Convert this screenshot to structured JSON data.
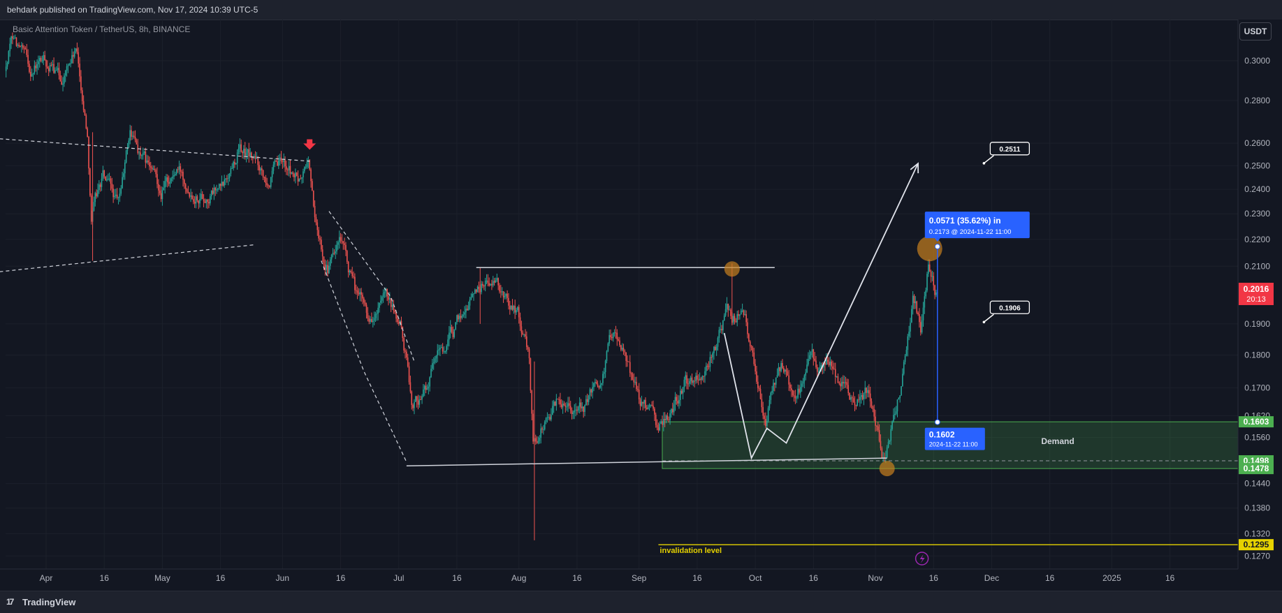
{
  "header": {
    "publisher_line": "behdark published on TradingView.com, Nov 17, 2024 10:39 UTC-5"
  },
  "symbol": {
    "description": "Basic Attention Token / TetherUS, 8h, BINANCE"
  },
  "currency_button": "USDT",
  "footer": {
    "logo_text": "TradingView",
    "logo_icon": "tradingview-logo-icon"
  },
  "colors": {
    "background": "#131722",
    "up": "#26a69a",
    "down": "#ef5350",
    "demand_zone": "#4caf50",
    "invalidation": "#e6d200",
    "measure": "#2962ff",
    "circle": "#c8801e"
  },
  "chart_data": {
    "type": "candlestick",
    "title": "",
    "interval": "8h",
    "exchange": "BINANCE",
    "y_scale": "log",
    "ylim": [
      0.126,
      0.325
    ],
    "y_ticks": [
      "0.3000",
      "0.2800",
      "0.2600",
      "0.2500",
      "0.2400",
      "0.2300",
      "0.2200",
      "0.2100",
      "0.1900",
      "0.1800",
      "0.1700",
      "0.1620",
      "0.1560",
      "0.1440",
      "0.1380",
      "0.1320",
      "0.1270"
    ],
    "x_ticks": [
      "Apr",
      "16",
      "May",
      "16",
      "Jun",
      "16",
      "Jul",
      "16",
      "Aug",
      "16",
      "Sep",
      "16",
      "Oct",
      "16",
      "Nov",
      "16",
      "Dec",
      "16",
      "2025",
      "16"
    ],
    "last_price": {
      "value": "0.2016",
      "countdown": "20:13"
    },
    "price_tags": [
      {
        "label": "0.1603",
        "value": 0.1603,
        "color": "#4caf50"
      },
      {
        "label": "0.1498",
        "value": 0.1498,
        "color": "#4caf50"
      },
      {
        "label": "0.1478",
        "value": 0.1478,
        "color": "#4caf50"
      },
      {
        "label": "0.1295",
        "value": 0.1295,
        "color": "#e6d200"
      }
    ],
    "price_path": [
      [
        "2024-03-20",
        0.285
      ],
      [
        "2024-03-24",
        0.315
      ],
      [
        "2024-03-28",
        0.295
      ],
      [
        "2024-04-01",
        0.3
      ],
      [
        "2024-04-05",
        0.29
      ],
      [
        "2024-04-09",
        0.305
      ],
      [
        "2024-04-12",
        0.265
      ],
      [
        "2024-04-13",
        0.23
      ],
      [
        "2024-04-16",
        0.245
      ],
      [
        "2024-04-20",
        0.232
      ],
      [
        "2024-04-23",
        0.265
      ],
      [
        "2024-04-27",
        0.25
      ],
      [
        "2024-05-01",
        0.24
      ],
      [
        "2024-05-05",
        0.248
      ],
      [
        "2024-05-09",
        0.242
      ],
      [
        "2024-05-13",
        0.238
      ],
      [
        "2024-05-17",
        0.24
      ],
      [
        "2024-05-21",
        0.258
      ],
      [
        "2024-05-25",
        0.252
      ],
      [
        "2024-05-29",
        0.246
      ],
      [
        "2024-06-02",
        0.25
      ],
      [
        "2024-06-06",
        0.242
      ],
      [
        "2024-06-08",
        0.252
      ],
      [
        "2024-06-10",
        0.225
      ],
      [
        "2024-06-13",
        0.21
      ],
      [
        "2024-06-16",
        0.218
      ],
      [
        "2024-06-20",
        0.2
      ],
      [
        "2024-06-24",
        0.192
      ],
      [
        "2024-06-28",
        0.196
      ],
      [
        "2024-07-02",
        0.188
      ],
      [
        "2024-07-05",
        0.165
      ],
      [
        "2024-07-08",
        0.17
      ],
      [
        "2024-07-12",
        0.18
      ],
      [
        "2024-07-16",
        0.188
      ],
      [
        "2024-07-20",
        0.2
      ],
      [
        "2024-07-24",
        0.206
      ],
      [
        "2024-07-28",
        0.2
      ],
      [
        "2024-08-01",
        0.195
      ],
      [
        "2024-08-04",
        0.178
      ],
      [
        "2024-08-05",
        0.155
      ],
      [
        "2024-08-07",
        0.158
      ],
      [
        "2024-08-10",
        0.165
      ],
      [
        "2024-08-14",
        0.168
      ],
      [
        "2024-08-18",
        0.163
      ],
      [
        "2024-08-22",
        0.172
      ],
      [
        "2024-08-26",
        0.19
      ],
      [
        "2024-08-29",
        0.178
      ],
      [
        "2024-09-02",
        0.166
      ],
      [
        "2024-09-06",
        0.158
      ],
      [
        "2024-09-09",
        0.162
      ],
      [
        "2024-09-13",
        0.17
      ],
      [
        "2024-09-17",
        0.172
      ],
      [
        "2024-09-21",
        0.182
      ],
      [
        "2024-09-24",
        0.195
      ],
      [
        "2024-09-26",
        0.192
      ],
      [
        "2024-09-28",
        0.196
      ],
      [
        "2024-10-01",
        0.178
      ],
      [
        "2024-10-04",
        0.163
      ],
      [
        "2024-10-08",
        0.175
      ],
      [
        "2024-10-12",
        0.168
      ],
      [
        "2024-10-16",
        0.178
      ],
      [
        "2024-10-20",
        0.176
      ],
      [
        "2024-10-24",
        0.172
      ],
      [
        "2024-10-27",
        0.166
      ],
      [
        "2024-10-30",
        0.17
      ],
      [
        "2024-11-02",
        0.158
      ],
      [
        "2024-11-04",
        0.15
      ],
      [
        "2024-11-06",
        0.162
      ],
      [
        "2024-11-09",
        0.178
      ],
      [
        "2024-11-11",
        0.2
      ],
      [
        "2024-11-13",
        0.19
      ],
      [
        "2024-11-15",
        0.212
      ],
      [
        "2024-11-17",
        0.2016
      ]
    ],
    "annotations": {
      "demand_zone": {
        "label": "Demand",
        "from": "2024-09-07",
        "upper": 0.1603,
        "lower": 0.1478,
        "mid": 0.1498
      },
      "invalidation": {
        "label": "invalidation level",
        "value": 0.1295,
        "from": "2024-09-06"
      },
      "resistance_line": {
        "from": "2024-07-21",
        "to": "2024-10-06",
        "value": 0.2095
      },
      "support_line": {
        "from": "2024-07-03",
        "to": "2024-11-04",
        "y1": 0.1485,
        "y2": 0.1505
      },
      "channel_upper": {
        "p1": [
          "2024-03-20",
          0.262
        ],
        "p2": [
          "2024-06-08",
          0.252
        ]
      },
      "channel_lower": {
        "p1": [
          "2024-03-20",
          0.208
        ],
        "p2": [
          "2024-05-25",
          0.218
        ]
      },
      "wedge_upper": {
        "p1": [
          "2024-06-13",
          0.231
        ],
        "p2": [
          "2024-06-29",
          0.199
        ],
        "p3": [
          "2024-07-05",
          0.178
        ]
      },
      "wedge_lower": {
        "p1": [
          "2024-06-11",
          0.212
        ],
        "p2": [
          "2024-06-22",
          0.175
        ],
        "p3": [
          "2024-07-03",
          0.1495
        ]
      },
      "red_arrow": [
        "2024-06-08",
        0.258
      ],
      "orange_circles": [
        [
          "2024-09-25",
          0.209
        ],
        [
          "2024-11-04",
          0.1478
        ],
        [
          "2024-11-15",
          0.2165
        ]
      ],
      "projection_path": [
        [
          "2024-09-23",
          0.187
        ],
        [
          "2024-09-30",
          0.1505
        ],
        [
          "2024-10-04",
          0.1585
        ],
        [
          "2024-10-09",
          0.1545
        ],
        [
          "2024-11-12",
          0.251
        ]
      ],
      "target_labels": [
        {
          "label": "0.2511",
          "at": [
            "2024-11-29",
            0.2511
          ]
        },
        {
          "label": "0.1906",
          "at": [
            "2024-11-29",
            0.1906
          ]
        }
      ],
      "measure": {
        "date": "2024-11-17",
        "from_value": 0.1602,
        "to_value": 0.2173,
        "top_line1": "0.0571 (35.62%) in",
        "top_line2": "0.2173 @ 2024-11-22  11:00",
        "bottom_line1": "0.1602",
        "bottom_line2": "2024-11-22 11:00"
      },
      "alert_icon": "2024-11-13"
    }
  }
}
